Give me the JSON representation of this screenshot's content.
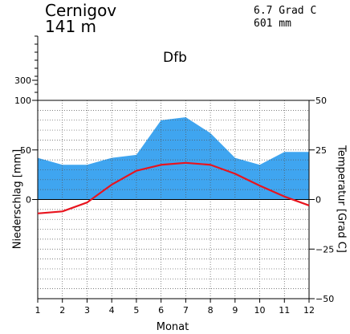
{
  "header": {
    "station": "Cernigov",
    "elevation": "141 m",
    "annual_temperature": "6.7 Grad C",
    "annual_precipitation": "601 mm",
    "climate_class": "Dfb"
  },
  "chart_data": {
    "type": "area",
    "title": "Cernigov",
    "xlabel": "Monat",
    "ylabel_left": "Niederschlag [mm]",
    "ylabel_right": "Temperatur [Grad C]",
    "categories": [
      1,
      2,
      3,
      4,
      5,
      6,
      7,
      8,
      9,
      10,
      11,
      12
    ],
    "x_ticks": [
      "1",
      "2",
      "3",
      "4",
      "5",
      "6",
      "7",
      "8",
      "9",
      "10",
      "11",
      "12"
    ],
    "left_axis": {
      "range": [
        -100,
        100
      ],
      "ticks": [
        "0",
        "50",
        "100"
      ],
      "extra_tick": {
        "value": 300,
        "label": "300"
      }
    },
    "right_axis": {
      "range": [
        -50,
        50
      ],
      "ticks": [
        "50",
        "25",
        "0",
        "−25",
        "−50"
      ]
    },
    "series": [
      {
        "type": "area",
        "axis": "left",
        "color": "#3fa5f0",
        "values": [
          42,
          35,
          35,
          42,
          45,
          80,
          83,
          67,
          42,
          35,
          48,
          48
        ]
      },
      {
        "type": "line",
        "axis": "right",
        "color": "#e8141e",
        "values": [
          -7,
          -6,
          -1.5,
          7.5,
          14.5,
          17.5,
          18.5,
          17.5,
          13,
          7,
          1.5,
          -3
        ]
      }
    ],
    "grid": true
  }
}
